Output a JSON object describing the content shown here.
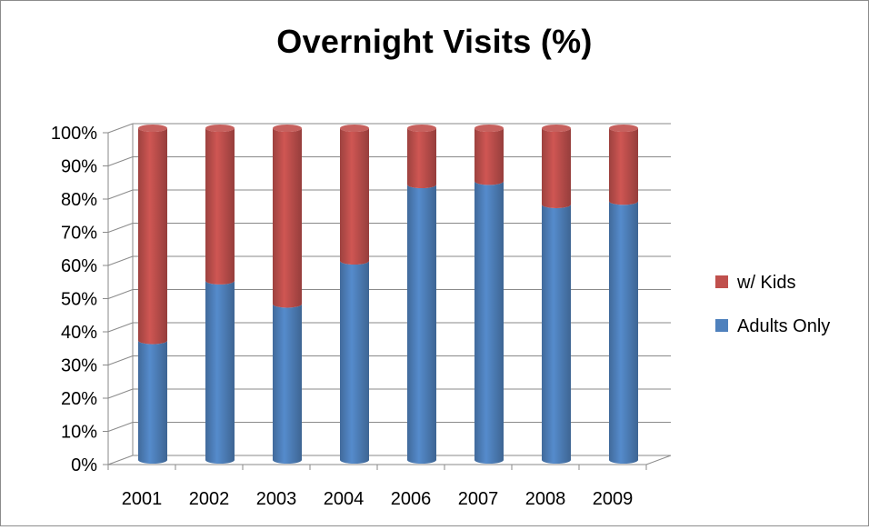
{
  "chart_data": {
    "type": "bar",
    "stacked": true,
    "title": "Overnight Visits (%)",
    "categories": [
      "2001",
      "2002",
      "2003",
      "2004",
      "2006",
      "2007",
      "2008",
      "2009"
    ],
    "series": [
      {
        "name": "Adults Only",
        "color": "#4f81bd",
        "values": [
          36,
          54,
          47,
          60,
          83,
          84,
          77,
          78
        ]
      },
      {
        "name": "w/ Kids",
        "color": "#c0504d",
        "values": [
          64,
          46,
          53,
          40,
          17,
          16,
          23,
          22
        ]
      }
    ],
    "ylim": [
      0,
      100
    ],
    "y_ticks": [
      "0%",
      "10%",
      "20%",
      "30%",
      "40%",
      "50%",
      "60%",
      "70%",
      "80%",
      "90%",
      "100%"
    ],
    "grid": true,
    "legend": {
      "position": "right",
      "entries": [
        "w/ Kids",
        "Adults Only"
      ]
    },
    "xlabel": "",
    "ylabel": ""
  }
}
